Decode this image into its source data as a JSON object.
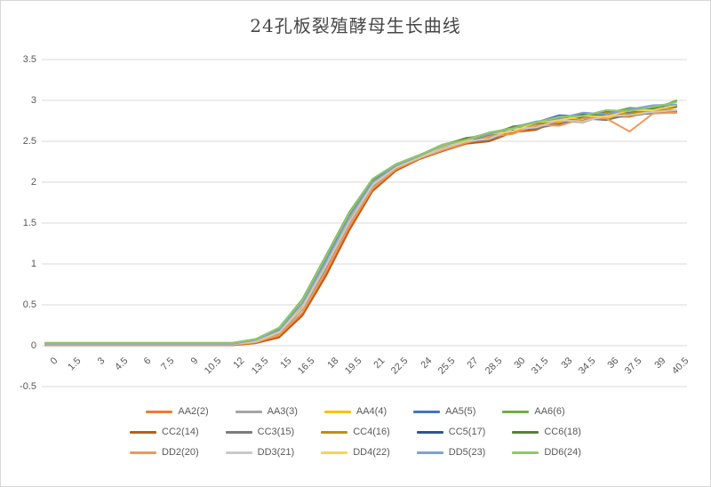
{
  "window": {
    "background": "#ffffff",
    "border_color": "#d7d7d7"
  },
  "chart_data": {
    "type": "line",
    "title": "24孔板裂殖酵母生长曲线",
    "xlabel": "",
    "ylabel": "",
    "ylim": [
      -0.5,
      3.5
    ],
    "y_tick_step": 0.5,
    "y_ticks": [
      3.5,
      3,
      2.5,
      2,
      1.5,
      1,
      0.5,
      0,
      -0.5
    ],
    "grid": "horizontal",
    "gridline_color": "#d9d9d9",
    "tick_label_color": "#595959",
    "legend_position": "bottom",
    "legend_items_per_row": 5,
    "categories": [
      "0",
      "1.5",
      "3",
      "4.5",
      "6",
      "7.5",
      "9",
      "10.5",
      "12",
      "13.5",
      "15",
      "16.5",
      "18",
      "19.5",
      "21",
      "22.5",
      "24",
      "25.5",
      "27",
      "28.5",
      "30",
      "31.5",
      "33",
      "34.5",
      "36",
      "37.5",
      "39",
      "40.5"
    ],
    "series": [
      {
        "name": "AA2(2)",
        "color": "#ED7D31",
        "values": [
          0.01,
          0.01,
          0.01,
          0.01,
          0.01,
          0.01,
          0.01,
          0.01,
          0.01,
          0.04,
          0.12,
          0.39,
          0.88,
          1.44,
          1.91,
          2.15,
          2.29,
          2.42,
          2.48,
          2.57,
          2.6,
          2.71,
          2.72,
          2.79,
          2.8,
          2.8,
          2.88,
          2.86
        ]
      },
      {
        "name": "AA3(3)",
        "color": "#A5A5A5",
        "values": [
          0.018,
          0.018,
          0.018,
          0.018,
          0.018,
          0.018,
          0.018,
          0.018,
          0.018,
          0.06,
          0.16,
          0.47,
          0.98,
          1.53,
          1.97,
          2.18,
          2.31,
          2.4,
          2.51,
          2.53,
          2.65,
          2.65,
          2.75,
          2.73,
          2.82,
          2.81,
          2.87,
          2.87
        ]
      },
      {
        "name": "AA4(4)",
        "color": "#FFC000",
        "values": [
          0.022,
          0.022,
          0.022,
          0.022,
          0.022,
          0.022,
          0.022,
          0.022,
          0.022,
          0.06,
          0.18,
          0.5,
          1.01,
          1.55,
          1.99,
          2.19,
          2.31,
          2.44,
          2.49,
          2.58,
          2.61,
          2.72,
          2.74,
          2.8,
          2.78,
          2.87,
          2.85,
          2.92
        ]
      },
      {
        "name": "AA5(5)",
        "color": "#4472C4",
        "values": [
          0.026,
          0.026,
          0.026,
          0.026,
          0.026,
          0.026,
          0.026,
          0.026,
          0.026,
          0.07,
          0.19,
          0.52,
          1.04,
          1.58,
          2.0,
          2.2,
          2.32,
          2.45,
          2.51,
          2.59,
          2.65,
          2.73,
          2.82,
          2.8,
          2.86,
          2.85,
          2.91,
          2.93
        ]
      },
      {
        "name": "AA6(6)",
        "color": "#70AD47",
        "values": [
          0.034,
          0.034,
          0.034,
          0.034,
          0.034,
          0.034,
          0.034,
          0.034,
          0.034,
          0.08,
          0.22,
          0.57,
          1.1,
          1.63,
          2.04,
          2.22,
          2.33,
          2.46,
          2.53,
          2.6,
          2.67,
          2.74,
          2.77,
          2.84,
          2.84,
          2.91,
          2.89,
          3.0
        ]
      },
      {
        "name": "CC2(14)",
        "color": "#C55A11",
        "values": [
          0.006,
          0.006,
          0.006,
          0.006,
          0.006,
          0.006,
          0.006,
          0.006,
          0.006,
          0.03,
          0.1,
          0.37,
          0.85,
          1.41,
          1.89,
          2.14,
          2.28,
          2.38,
          2.47,
          2.5,
          2.61,
          2.64,
          2.76,
          2.74,
          2.84,
          2.81,
          2.85,
          2.85
        ]
      },
      {
        "name": "CC3(15)",
        "color": "#7B7B7B",
        "values": [
          0.016,
          0.016,
          0.016,
          0.016,
          0.016,
          0.016,
          0.016,
          0.016,
          0.016,
          0.05,
          0.15,
          0.45,
          0.95,
          1.5,
          1.95,
          2.17,
          2.3,
          2.4,
          2.49,
          2.52,
          2.64,
          2.66,
          2.71,
          2.78,
          2.76,
          2.83,
          2.84,
          2.86
        ]
      },
      {
        "name": "CC4(16)",
        "color": "#BF9000",
        "values": [
          0.02,
          0.02,
          0.02,
          0.02,
          0.02,
          0.02,
          0.02,
          0.02,
          0.02,
          0.06,
          0.17,
          0.49,
          1.0,
          1.54,
          1.98,
          2.19,
          2.31,
          2.43,
          2.52,
          2.54,
          2.66,
          2.68,
          2.78,
          2.75,
          2.85,
          2.84,
          2.89,
          2.88
        ]
      },
      {
        "name": "CC5(17)",
        "color": "#2F5597",
        "values": [
          0.024,
          0.024,
          0.024,
          0.024,
          0.024,
          0.024,
          0.024,
          0.024,
          0.024,
          0.07,
          0.19,
          0.51,
          1.03,
          1.57,
          2.0,
          2.2,
          2.32,
          2.44,
          2.5,
          2.58,
          2.64,
          2.72,
          2.8,
          2.79,
          2.83,
          2.89,
          2.88,
          2.94
        ]
      },
      {
        "name": "CC6(18)",
        "color": "#548235",
        "values": [
          0.032,
          0.032,
          0.032,
          0.032,
          0.032,
          0.032,
          0.032,
          0.032,
          0.032,
          0.08,
          0.21,
          0.56,
          1.09,
          1.62,
          2.03,
          2.22,
          2.33,
          2.45,
          2.54,
          2.57,
          2.68,
          2.71,
          2.79,
          2.83,
          2.82,
          2.88,
          2.9,
          2.92
        ]
      },
      {
        "name": "DD2(20)",
        "color": "#F1975A",
        "values": [
          0.012,
          0.012,
          0.012,
          0.012,
          0.012,
          0.012,
          0.012,
          0.012,
          0.012,
          0.04,
          0.13,
          0.41,
          0.91,
          1.46,
          1.92,
          2.16,
          2.29,
          2.39,
          2.48,
          2.56,
          2.59,
          2.7,
          2.69,
          2.78,
          2.78,
          2.62,
          2.84,
          2.85
        ]
      },
      {
        "name": "DD3(21)",
        "color": "#C9C9C9",
        "values": [
          0.017,
          0.017,
          0.017,
          0.017,
          0.017,
          0.017,
          0.017,
          0.017,
          0.017,
          0.05,
          0.16,
          0.46,
          0.97,
          1.51,
          1.96,
          2.18,
          2.3,
          2.41,
          2.5,
          2.53,
          2.65,
          2.67,
          2.76,
          2.74,
          2.81,
          2.82,
          2.86,
          2.88
        ]
      },
      {
        "name": "DD4(22)",
        "color": "#FFD24D",
        "values": [
          0.023,
          0.023,
          0.023,
          0.023,
          0.023,
          0.023,
          0.023,
          0.023,
          0.023,
          0.06,
          0.18,
          0.5,
          1.02,
          1.56,
          1.99,
          2.19,
          2.31,
          2.44,
          2.51,
          2.59,
          2.62,
          2.73,
          2.76,
          2.81,
          2.8,
          2.88,
          2.88,
          2.94
        ]
      },
      {
        "name": "DD5(23)",
        "color": "#7E9FDB",
        "values": [
          0.025,
          0.025,
          0.025,
          0.025,
          0.025,
          0.025,
          0.025,
          0.025,
          0.025,
          0.07,
          0.19,
          0.52,
          1.03,
          1.57,
          2.0,
          2.2,
          2.32,
          2.45,
          2.52,
          2.59,
          2.66,
          2.74,
          2.78,
          2.85,
          2.83,
          2.89,
          2.94,
          2.95
        ]
      },
      {
        "name": "DD6(24)",
        "color": "#8FC965",
        "values": [
          0.036,
          0.036,
          0.036,
          0.036,
          0.036,
          0.036,
          0.036,
          0.036,
          0.036,
          0.08,
          0.22,
          0.56,
          1.09,
          1.62,
          2.04,
          2.22,
          2.33,
          2.46,
          2.52,
          2.61,
          2.66,
          2.73,
          2.8,
          2.81,
          2.88,
          2.87,
          2.92,
          2.98
        ]
      }
    ]
  }
}
